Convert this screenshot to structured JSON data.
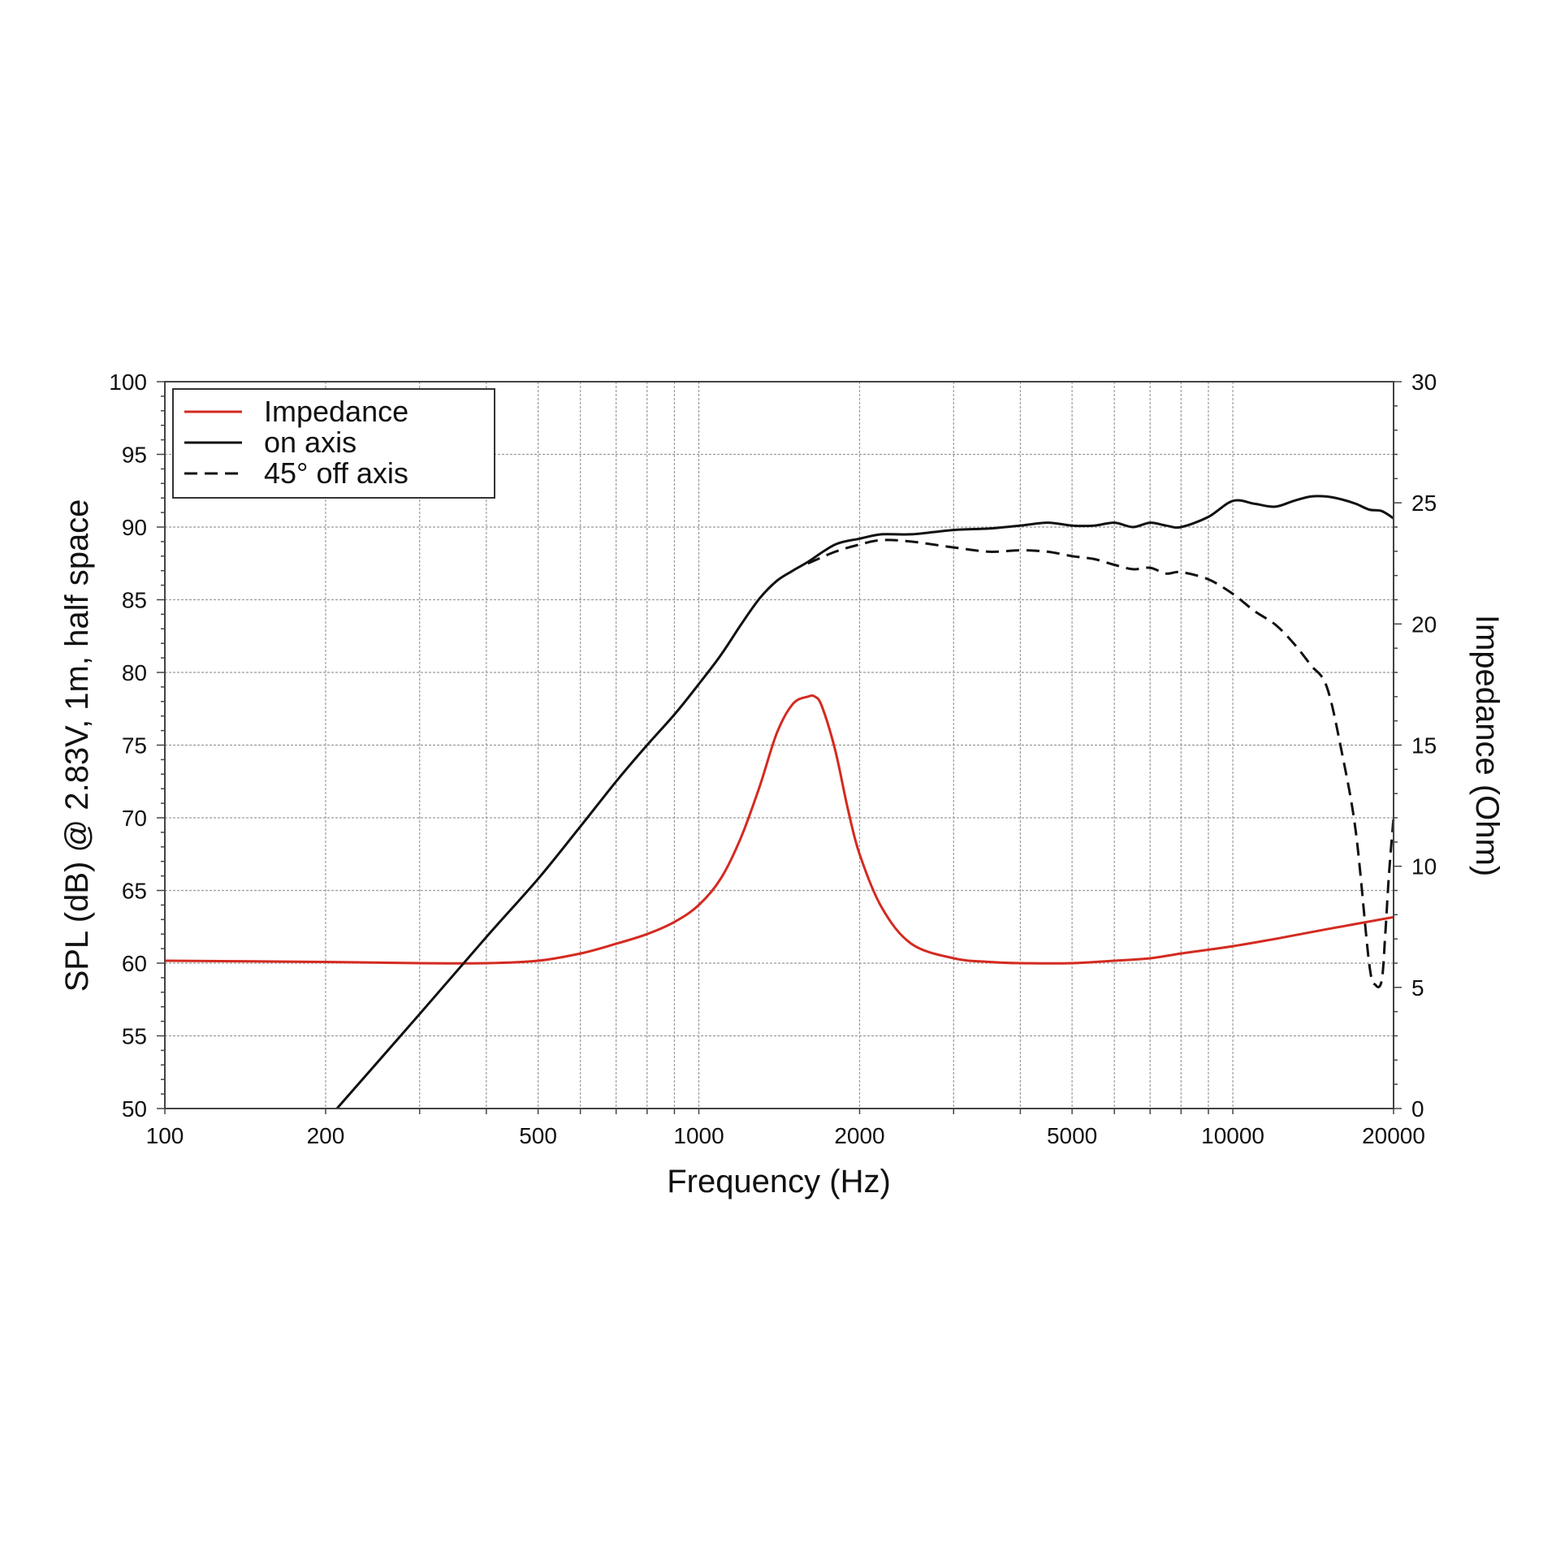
{
  "chart_data": {
    "type": "line",
    "xlabel": "Frequency (Hz)",
    "ylabel_left": "SPL (dB) @ 2.83V, 1m, half space",
    "ylabel_right": "Impedance (Ohm)",
    "x_scale": "log",
    "xlim": [
      100,
      20000
    ],
    "ylim_left": [
      50,
      100
    ],
    "ylim_right": [
      0,
      30
    ],
    "x_ticks": [
      100,
      200,
      500,
      1000,
      2000,
      5000,
      10000,
      20000
    ],
    "x_tick_labels": [
      "100",
      "200",
      "500",
      "1000",
      "2000",
      "5000",
      "10000",
      "20000"
    ],
    "y_left_ticks": [
      50,
      55,
      60,
      65,
      70,
      75,
      80,
      85,
      90,
      95,
      100
    ],
    "y_left_tick_labels": [
      "50",
      "55",
      "60",
      "65",
      "70",
      "75",
      "80",
      "85",
      "90",
      "95",
      "100"
    ],
    "y_right_ticks": [
      0,
      5,
      10,
      15,
      20,
      25,
      30
    ],
    "y_right_tick_labels": [
      "0",
      "5",
      "10",
      "15",
      "20",
      "25",
      "30"
    ],
    "grid": true,
    "legend_position": "top-left",
    "series": [
      {
        "name": "Impedance",
        "axis": "right",
        "color": "#d42a20",
        "style": "solid",
        "x": [
          100,
          200,
          300,
          400,
          500,
          600,
          700,
          800,
          900,
          1000,
          1100,
          1200,
          1300,
          1400,
          1500,
          1600,
          1650,
          1700,
          1800,
          1900,
          2000,
          2200,
          2500,
          3000,
          3500,
          4000,
          5000,
          6000,
          7000,
          8000,
          10000,
          12000,
          15000,
          20000
        ],
        "y": [
          6.1,
          6.05,
          6.0,
          6.0,
          6.1,
          6.4,
          6.8,
          7.2,
          7.7,
          8.4,
          9.5,
          11.2,
          13.3,
          15.5,
          16.7,
          17.0,
          17.0,
          16.6,
          14.8,
          12.4,
          10.5,
          8.3,
          6.8,
          6.2,
          6.05,
          6.0,
          6.0,
          6.1,
          6.2,
          6.4,
          6.7,
          7.0,
          7.4,
          7.9
        ]
      },
      {
        "name": "on axis",
        "axis": "left",
        "color": "#111111",
        "style": "solid",
        "x": [
          210,
          300,
          400,
          500,
          600,
          700,
          800,
          900,
          1000,
          1100,
          1200,
          1300,
          1400,
          1500,
          1600,
          1800,
          2000,
          2200,
          2500,
          3000,
          3500,
          4000,
          4500,
          5000,
          5500,
          6000,
          6500,
          7000,
          7500,
          8000,
          9000,
          10000,
          11000,
          12000,
          13000,
          14000,
          15000,
          16000,
          17000,
          18000,
          19000,
          20000
        ],
        "y": [
          50,
          56.5,
          61.8,
          65.8,
          69.4,
          72.5,
          75,
          77.1,
          79.2,
          81.2,
          83.3,
          85.1,
          86.3,
          87.0,
          87.6,
          88.8,
          89.2,
          89.5,
          89.5,
          89.8,
          89.9,
          90.1,
          90.3,
          90.1,
          90.1,
          90.3,
          90.0,
          90.3,
          90.1,
          90.0,
          90.7,
          91.8,
          91.6,
          91.4,
          91.8,
          92.1,
          92.1,
          91.9,
          91.6,
          91.2,
          91.1,
          90.6
        ]
      },
      {
        "name": "45° off axis",
        "axis": "left",
        "color": "#111111",
        "style": "dashed",
        "x": [
          1600,
          1800,
          2000,
          2200,
          2500,
          3000,
          3500,
          4000,
          4500,
          5000,
          5500,
          6000,
          6500,
          7000,
          7500,
          8000,
          9000,
          10000,
          11000,
          12000,
          13000,
          14000,
          15000,
          16000,
          17000,
          18000,
          18500,
          19000,
          19300,
          19600,
          20000
        ],
        "y": [
          87.5,
          88.3,
          88.8,
          89.1,
          89.0,
          88.6,
          88.3,
          88.4,
          88.3,
          88.0,
          87.8,
          87.4,
          87.1,
          87.2,
          86.8,
          86.9,
          86.4,
          85.4,
          84.2,
          83.3,
          82.0,
          80.5,
          79.0,
          74.5,
          69.0,
          60.0,
          58.5,
          58.8,
          62.0,
          66.0,
          70.0
        ]
      }
    ]
  }
}
